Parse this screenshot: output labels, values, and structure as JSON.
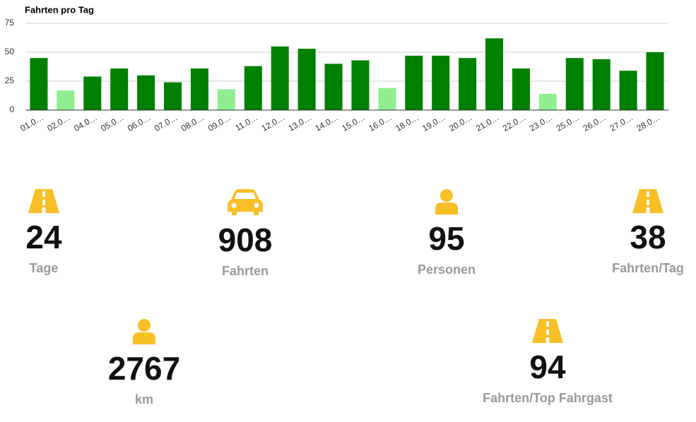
{
  "chart_data": {
    "type": "bar",
    "title": "Fahrten pro Tag",
    "categories": [
      "01.0…",
      "02.0…",
      "04.0…",
      "05.0…",
      "06.0…",
      "07.0…",
      "08.0…",
      "09.0…",
      "11.0…",
      "12.0…",
      "13.0…",
      "14.0…",
      "15.0…",
      "16.0…",
      "18.0…",
      "19.0…",
      "20.0…",
      "21.0…",
      "22.0…",
      "23.0…",
      "25.0…",
      "26.0…",
      "27.0…",
      "28.0…"
    ],
    "values": [
      45,
      17,
      29,
      36,
      30,
      24,
      36,
      18,
      38,
      55,
      53,
      40,
      43,
      19,
      47,
      47,
      45,
      62,
      36,
      14,
      45,
      44,
      34,
      50
    ],
    "colors": [
      "#008000",
      "#90ee90",
      "#008000",
      "#008000",
      "#008000",
      "#008000",
      "#008000",
      "#90ee90",
      "#008000",
      "#008000",
      "#008000",
      "#008000",
      "#008000",
      "#90ee90",
      "#008000",
      "#008000",
      "#008000",
      "#008000",
      "#008000",
      "#90ee90",
      "#008000",
      "#008000",
      "#008000",
      "#008000"
    ],
    "ylim": [
      0,
      75
    ],
    "yticks": [
      0,
      25,
      50,
      75
    ],
    "grid": true
  },
  "stats": [
    {
      "value": 24,
      "label": "Tage"
    },
    {
      "value": 908,
      "label": "Fahrten"
    },
    {
      "value": 95,
      "label": "Personen"
    },
    {
      "value": 38,
      "label": "Fahrten/Tag"
    },
    {
      "value": 2767,
      "label": "km"
    },
    {
      "value": 94,
      "label": "Fahrten/Top Fahrgast"
    }
  ]
}
